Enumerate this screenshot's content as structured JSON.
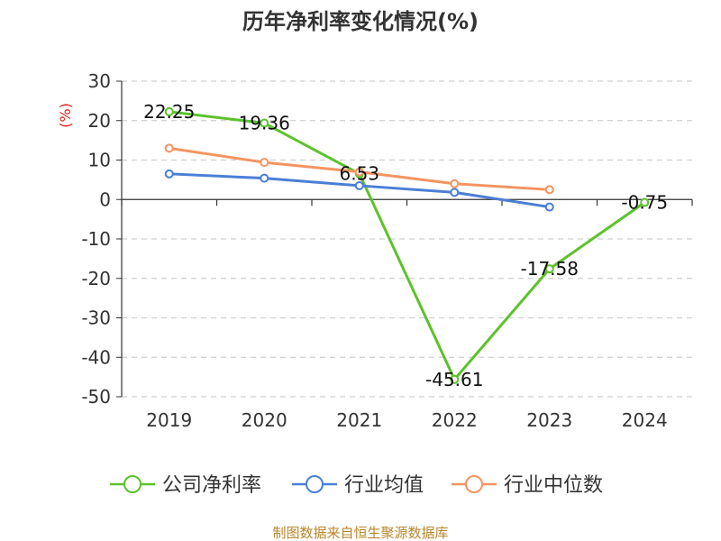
{
  "chart_data": {
    "type": "line",
    "title": "历年净利率变化情况(%)",
    "ylabel": "(%)",
    "categories": [
      "2019",
      "2020",
      "2021",
      "2022",
      "2023",
      "2024"
    ],
    "ylim": [
      -50,
      30
    ],
    "yticks": [
      30,
      20,
      10,
      0,
      -10,
      -20,
      -30,
      -40,
      -50
    ],
    "grid": true,
    "legend_position": "bottom",
    "series": [
      {
        "name": "公司净利率",
        "color": "#5cc22b",
        "values": [
          22.25,
          19.36,
          6.53,
          -45.61,
          -17.58,
          -0.75
        ],
        "labels": [
          "22.25",
          "19.36",
          "6.53",
          "-45.61",
          "-17.58",
          "-0.75"
        ]
      },
      {
        "name": "行业均值",
        "color": "#4a7fd6",
        "values": [
          6.5,
          5.4,
          3.5,
          1.8,
          -1.9,
          null
        ]
      },
      {
        "name": "行业中位数",
        "color": "#f49460",
        "values": [
          13.0,
          9.4,
          7.0,
          4.0,
          2.5,
          null
        ]
      }
    ]
  },
  "source": "制图数据来自恒生聚源数据库"
}
